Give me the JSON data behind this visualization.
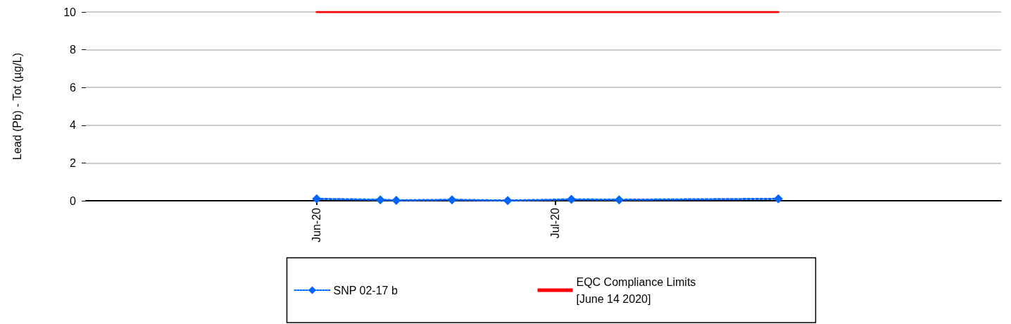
{
  "chart_data": {
    "type": "line",
    "ylabel": "Lead (Pb) - Tot (µg/L)",
    "xlim": [
      "2020-05-03",
      "2020-08-26"
    ],
    "xticks": [
      {
        "value": "2020-06-01",
        "label": "Jun-20"
      },
      {
        "value": "2020-07-01",
        "label": "Jul-20"
      }
    ],
    "ylim": [
      0,
      10
    ],
    "yticks": [
      0,
      2,
      4,
      6,
      8,
      10
    ],
    "grid": "y",
    "legend": "bottom",
    "series": [
      {
        "name": "SNP 02-17 b",
        "color": "#0066ff",
        "marker": "diamond",
        "line_style": "dotted",
        "x": [
          "2020-06-01",
          "2020-06-09",
          "2020-06-11",
          "2020-06-18",
          "2020-06-25",
          "2020-07-03",
          "2020-07-09",
          "2020-07-29"
        ],
        "values": [
          0.1,
          0.05,
          0.02,
          0.05,
          0.01,
          0.07,
          0.05,
          0.1
        ]
      },
      {
        "name": "EQC Compliance Limits [June 14 2020]",
        "color": "#ff0000",
        "marker": "none",
        "line_style": "solid",
        "x": [
          "2020-06-01",
          "2020-07-29"
        ],
        "values": [
          10,
          10
        ]
      }
    ]
  }
}
